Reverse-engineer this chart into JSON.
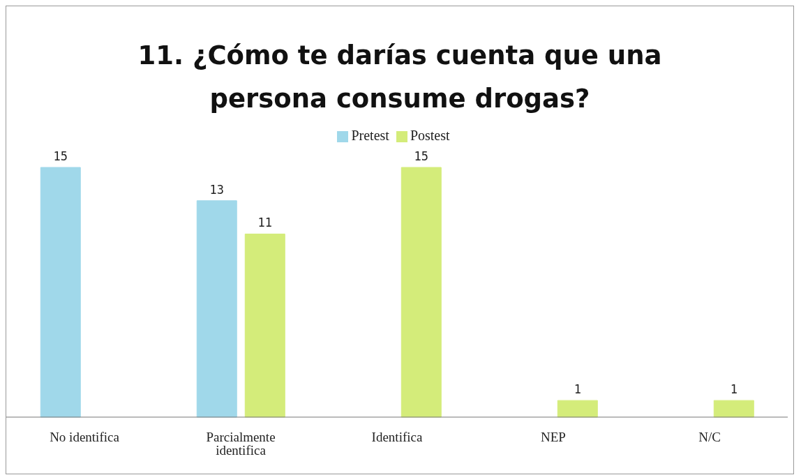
{
  "chart_data": {
    "type": "bar",
    "title": "11. ¿Cómo te darías cuenta que una persona consume drogas?",
    "categories": [
      "No identifica",
      "Parcialmente identifica",
      "Identifica",
      "NEP",
      "N/C"
    ],
    "series": [
      {
        "name": "Pretest",
        "color": "#a0d8ea",
        "values": [
          15,
          13,
          null,
          null,
          null
        ]
      },
      {
        "name": "Postest",
        "color": "#d4ec7a",
        "values": [
          null,
          11,
          15,
          1,
          1
        ]
      }
    ],
    "data_labels": true,
    "legend": "top",
    "grid": false
  }
}
